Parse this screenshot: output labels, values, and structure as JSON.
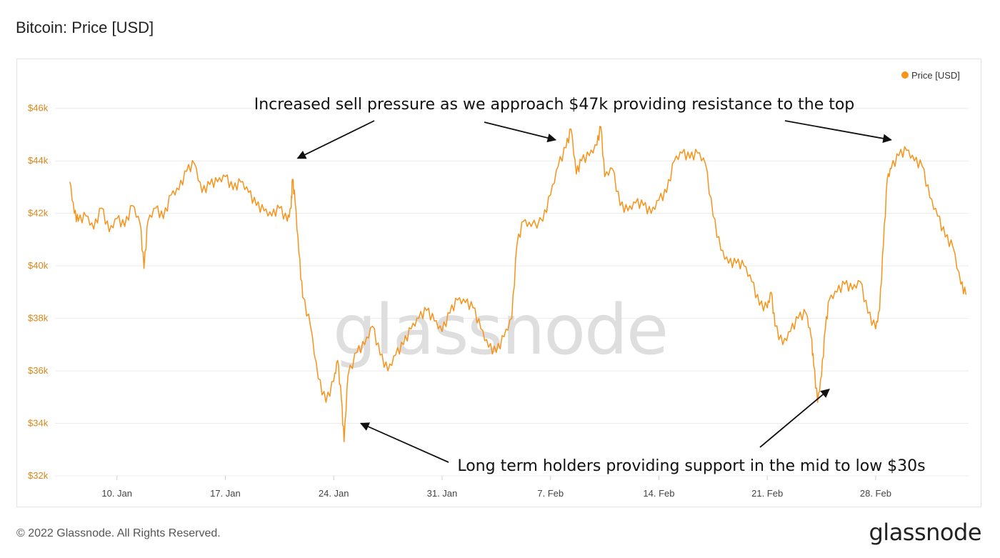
{
  "header": {
    "title": "Bitcoin: Price [USD]"
  },
  "footer": {
    "copyright": "© 2022 Glassnode. All Rights Reserved.",
    "logo_text": "glassnode"
  },
  "watermark": "glassnode",
  "colors": {
    "line": "#f7931a",
    "tick": "#d9861a",
    "grid": "#ececec",
    "annotation": "#111111",
    "watermark": "#dedede"
  },
  "chart_data": {
    "type": "line",
    "title": "Bitcoin: Price [USD]",
    "legend": {
      "entries": [
        "Price [USD]"
      ],
      "placement": "top-right"
    },
    "grid": true,
    "x_start": "2022-01-06",
    "x_end": "2022-03-06",
    "ylim": [
      32000,
      47000
    ],
    "y_ticks": [
      {
        "value": 32000,
        "label": "$32k"
      },
      {
        "value": 34000,
        "label": "$34k"
      },
      {
        "value": 36000,
        "label": "$36k"
      },
      {
        "value": 38000,
        "label": "$38k"
      },
      {
        "value": 40000,
        "label": "$40k"
      },
      {
        "value": 42000,
        "label": "$42k"
      },
      {
        "value": 44000,
        "label": "$44k"
      },
      {
        "value": 46000,
        "label": "$46k"
      }
    ],
    "x_ticks": [
      {
        "date": "2022-01-10",
        "label": "10. Jan"
      },
      {
        "date": "2022-01-17",
        "label": "17. Jan"
      },
      {
        "date": "2022-01-24",
        "label": "24. Jan"
      },
      {
        "date": "2022-01-31",
        "label": "31. Jan"
      },
      {
        "date": "2022-02-07",
        "label": "7. Feb"
      },
      {
        "date": "2022-02-14",
        "label": "14. Feb"
      },
      {
        "date": "2022-02-21",
        "label": "21. Feb"
      },
      {
        "date": "2022-02-28",
        "label": "28. Feb"
      }
    ],
    "series": [
      {
        "name": "Price [USD]",
        "points": [
          [
            "2022-01-06T23:00",
            43200
          ],
          [
            "2022-01-07T06:00",
            42000
          ],
          [
            "2022-01-07T12:00",
            41700
          ],
          [
            "2022-01-08T00:00",
            41900
          ],
          [
            "2022-01-08T12:00",
            41400
          ],
          [
            "2022-01-09T00:00",
            42200
          ],
          [
            "2022-01-09T12:00",
            41300
          ],
          [
            "2022-01-10T00:00",
            41800
          ],
          [
            "2022-01-10T12:00",
            41500
          ],
          [
            "2022-01-11T00:00",
            42300
          ],
          [
            "2022-01-11T12:00",
            41600
          ],
          [
            "2022-01-11T18:00",
            39900
          ],
          [
            "2022-01-12T00:00",
            41700
          ],
          [
            "2022-01-12T12:00",
            42200
          ],
          [
            "2022-01-13T00:00",
            41800
          ],
          [
            "2022-01-13T12:00",
            42700
          ],
          [
            "2022-01-14T00:00",
            42900
          ],
          [
            "2022-01-14T12:00",
            43600
          ],
          [
            "2022-01-15T00:00",
            43900
          ],
          [
            "2022-01-15T12:00",
            42800
          ],
          [
            "2022-01-16T00:00",
            43100
          ],
          [
            "2022-01-16T12:00",
            43200
          ],
          [
            "2022-01-17T00:00",
            43400
          ],
          [
            "2022-01-17T12:00",
            42900
          ],
          [
            "2022-01-18T00:00",
            43200
          ],
          [
            "2022-01-18T12:00",
            42800
          ],
          [
            "2022-01-19T00:00",
            42300
          ],
          [
            "2022-01-19T12:00",
            42100
          ],
          [
            "2022-01-20T00:00",
            41900
          ],
          [
            "2022-01-20T12:00",
            42200
          ],
          [
            "2022-01-21T00:00",
            41700
          ],
          [
            "2022-01-21T06:00",
            42200
          ],
          [
            "2022-01-21T08:00",
            43300
          ],
          [
            "2022-01-21T12:00",
            42500
          ],
          [
            "2022-01-21T18:00",
            40500
          ],
          [
            "2022-01-22T00:00",
            38800
          ],
          [
            "2022-01-22T12:00",
            37700
          ],
          [
            "2022-01-23T00:00",
            35700
          ],
          [
            "2022-01-23T12:00",
            34800
          ],
          [
            "2022-01-24T00:00",
            35600
          ],
          [
            "2022-01-24T06:00",
            36400
          ],
          [
            "2022-01-24T12:00",
            34900
          ],
          [
            "2022-01-24T16:00",
            33300
          ],
          [
            "2022-01-24T22:00",
            35800
          ],
          [
            "2022-01-25T12:00",
            36700
          ],
          [
            "2022-01-26T00:00",
            37000
          ],
          [
            "2022-01-26T12:00",
            37700
          ],
          [
            "2022-01-27T00:00",
            36600
          ],
          [
            "2022-01-27T12:00",
            36000
          ],
          [
            "2022-01-28T00:00",
            36600
          ],
          [
            "2022-01-28T12:00",
            37000
          ],
          [
            "2022-01-29T00:00",
            37600
          ],
          [
            "2022-01-29T12:00",
            38000
          ],
          [
            "2022-01-30T00:00",
            38300
          ],
          [
            "2022-01-30T12:00",
            37900
          ],
          [
            "2022-01-31T00:00",
            37500
          ],
          [
            "2022-01-31T12:00",
            38200
          ],
          [
            "2022-02-01T00:00",
            38700
          ],
          [
            "2022-02-01T12:00",
            38600
          ],
          [
            "2022-02-02T00:00",
            38400
          ],
          [
            "2022-02-02T12:00",
            37600
          ],
          [
            "2022-02-03T00:00",
            36900
          ],
          [
            "2022-02-03T12:00",
            36700
          ],
          [
            "2022-02-04T00:00",
            37300
          ],
          [
            "2022-02-04T12:00",
            38000
          ],
          [
            "2022-02-04T20:00",
            40800
          ],
          [
            "2022-02-05T06:00",
            41700
          ],
          [
            "2022-02-05T18:00",
            41500
          ],
          [
            "2022-02-06T12:00",
            41700
          ],
          [
            "2022-02-07T00:00",
            42700
          ],
          [
            "2022-02-07T12:00",
            43800
          ],
          [
            "2022-02-08T00:00",
            44500
          ],
          [
            "2022-02-08T08:00",
            45200
          ],
          [
            "2022-02-08T16:00",
            43500
          ],
          [
            "2022-02-09T00:00",
            44000
          ],
          [
            "2022-02-09T12:00",
            44200
          ],
          [
            "2022-02-10T00:00",
            44600
          ],
          [
            "2022-02-10T06:00",
            45300
          ],
          [
            "2022-02-10T12:00",
            43400
          ],
          [
            "2022-02-11T00:00",
            43700
          ],
          [
            "2022-02-11T12:00",
            42300
          ],
          [
            "2022-02-12T00:00",
            42100
          ],
          [
            "2022-02-12T12:00",
            42400
          ],
          [
            "2022-02-13T00:00",
            42300
          ],
          [
            "2022-02-13T12:00",
            42000
          ],
          [
            "2022-02-14T00:00",
            42500
          ],
          [
            "2022-02-14T12:00",
            42800
          ],
          [
            "2022-02-15T00:00",
            44000
          ],
          [
            "2022-02-15T12:00",
            44300
          ],
          [
            "2022-02-16T00:00",
            44100
          ],
          [
            "2022-02-16T12:00",
            44300
          ],
          [
            "2022-02-17T00:00",
            43900
          ],
          [
            "2022-02-17T12:00",
            41900
          ],
          [
            "2022-02-18T00:00",
            40600
          ],
          [
            "2022-02-18T12:00",
            40100
          ],
          [
            "2022-02-19T00:00",
            40100
          ],
          [
            "2022-02-19T12:00",
            40000
          ],
          [
            "2022-02-20T00:00",
            39400
          ],
          [
            "2022-02-20T12:00",
            38500
          ],
          [
            "2022-02-21T00:00",
            38400
          ],
          [
            "2022-02-21T06:00",
            39000
          ],
          [
            "2022-02-21T12:00",
            37700
          ],
          [
            "2022-02-22T00:00",
            37000
          ],
          [
            "2022-02-22T12:00",
            37500
          ],
          [
            "2022-02-23T00:00",
            38000
          ],
          [
            "2022-02-23T12:00",
            38200
          ],
          [
            "2022-02-23T20:00",
            37300
          ],
          [
            "2022-02-24T00:00",
            36200
          ],
          [
            "2022-02-24T06:00",
            34800
          ],
          [
            "2022-02-24T12:00",
            35800
          ],
          [
            "2022-02-24T18:00",
            37600
          ],
          [
            "2022-02-25T00:00",
            38700
          ],
          [
            "2022-02-25T12:00",
            39000
          ],
          [
            "2022-02-26T00:00",
            39300
          ],
          [
            "2022-02-26T12:00",
            39100
          ],
          [
            "2022-02-27T00:00",
            39400
          ],
          [
            "2022-02-27T12:00",
            38200
          ],
          [
            "2022-02-28T00:00",
            37600
          ],
          [
            "2022-02-28T06:00",
            38300
          ],
          [
            "2022-02-28T12:00",
            40800
          ],
          [
            "2022-02-28T18:00",
            43300
          ],
          [
            "2022-03-01T00:00",
            43700
          ],
          [
            "2022-03-01T12:00",
            44200
          ],
          [
            "2022-03-02T00:00",
            44400
          ],
          [
            "2022-03-02T12:00",
            44000
          ],
          [
            "2022-03-03T00:00",
            43800
          ],
          [
            "2022-03-03T12:00",
            42600
          ],
          [
            "2022-03-04T00:00",
            41900
          ],
          [
            "2022-03-04T12:00",
            41100
          ],
          [
            "2022-03-05T00:00",
            40700
          ],
          [
            "2022-03-05T12:00",
            39300
          ],
          [
            "2022-03-05T20:00",
            38900
          ]
        ]
      }
    ],
    "annotations": [
      {
        "text": "Increased sell pressure as we approach $47k providing resistance to the top",
        "arrows": [
          {
            "date": "2022-01-21T16:00",
            "value": 44100
          },
          {
            "date": "2022-02-07T08:00",
            "value": 44800
          },
          {
            "date": "2022-03-01T00:00",
            "value": 44800
          }
        ]
      },
      {
        "text": "Long term holders providing support in the mid to low $30s",
        "arrows": [
          {
            "date": "2022-01-25T18:00",
            "value": 34000
          },
          {
            "date": "2022-02-25T00:00",
            "value": 35300
          }
        ]
      }
    ]
  }
}
